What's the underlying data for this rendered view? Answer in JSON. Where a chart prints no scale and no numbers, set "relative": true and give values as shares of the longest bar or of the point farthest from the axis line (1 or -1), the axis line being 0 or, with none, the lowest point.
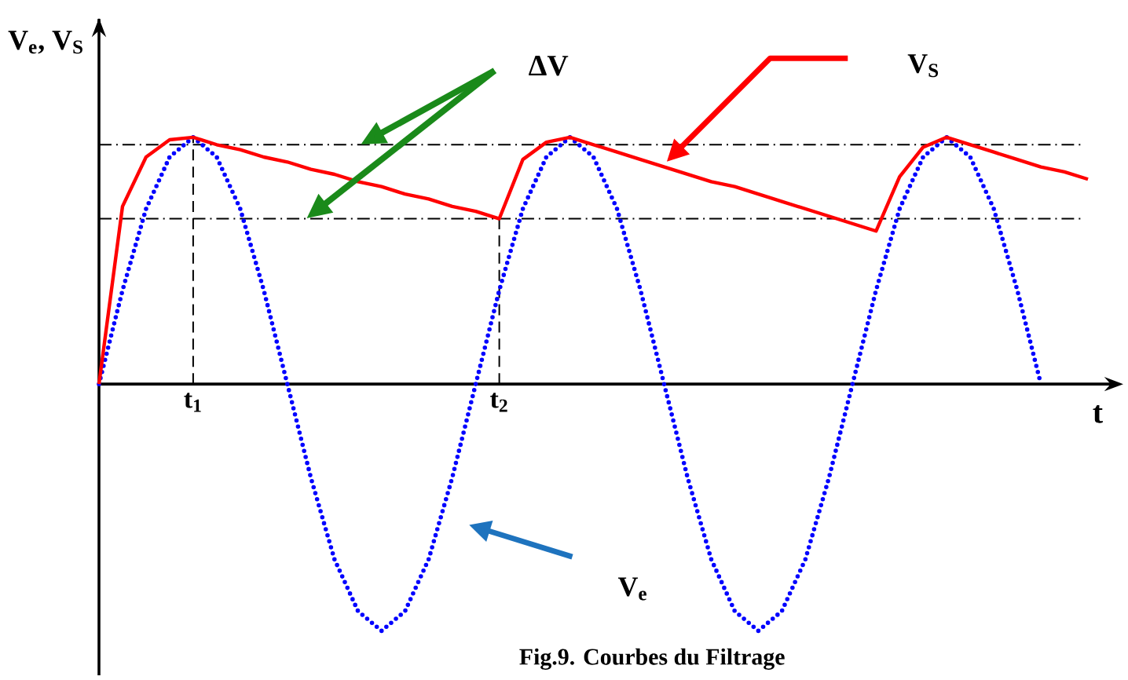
{
  "chart_data": {
    "type": "line",
    "relative": true,
    "title": "Fig.9. Courbes du Filtrage",
    "xlabel": "t",
    "ylabel": "V$_{e}$, V$_{S}$",
    "categories": [
      null,
      null,
      null,
      null,
      "t$_{1}$",
      null,
      null,
      null,
      null,
      null,
      null,
      null,
      null,
      null,
      null,
      null,
      null,
      "t$_{2}$",
      null,
      null,
      null,
      null,
      null,
      null,
      null,
      null,
      null,
      null,
      null,
      null,
      null,
      null,
      null,
      null,
      null,
      null,
      null,
      null,
      null,
      null,
      null,
      null,
      null,
      null
    ],
    "annotations": [
      "ΔV"
    ],
    "ref_lines": [
      {
        "axis": "y",
        "value": 0.97,
        "line_style": "dashdot"
      },
      {
        "axis": "y",
        "value": 0.67,
        "line_style": "dashdot"
      },
      {
        "axis": "x",
        "value": "t$_{1}$",
        "line_style": "dashed"
      },
      {
        "axis": "x",
        "value": "t$_{2}$",
        "line_style": "dashed"
      }
    ],
    "series": [
      {
        "name": "V$_{S}$",
        "color": "#ff0000",
        "line_style": "solid",
        "values": [
          0,
          0.72,
          0.92,
          0.99,
          1,
          0.97,
          0.95,
          0.92,
          0.9,
          0.87,
          0.85,
          0.82,
          0.8,
          0.77,
          0.75,
          0.72,
          0.7,
          0.67,
          0.91,
          0.98,
          1,
          0.97,
          0.94,
          0.91,
          0.88,
          0.85,
          0.82,
          0.8,
          0.77,
          0.74,
          0.71,
          0.68,
          0.65,
          0.62,
          0.84,
          0.96,
          1,
          0.97,
          0.94,
          0.91,
          0.88,
          0.86,
          0.83,
          null
        ]
      },
      {
        "name": "V$_{e}$",
        "color": "#0000ff",
        "line_style": "dotted",
        "values": [
          0,
          0.38,
          0.71,
          0.92,
          1,
          0.92,
          0.71,
          0.38,
          0,
          -0.38,
          -0.71,
          -0.92,
          -1,
          -0.92,
          -0.71,
          -0.38,
          0,
          0.38,
          0.71,
          0.92,
          1,
          0.92,
          0.71,
          0.38,
          0,
          -0.38,
          -0.71,
          -0.92,
          -1,
          -0.92,
          -0.71,
          -0.38,
          0,
          0.38,
          0.71,
          0.92,
          1,
          0.92,
          0.71,
          0.38,
          0,
          null,
          null,
          null
        ]
      }
    ]
  }
}
